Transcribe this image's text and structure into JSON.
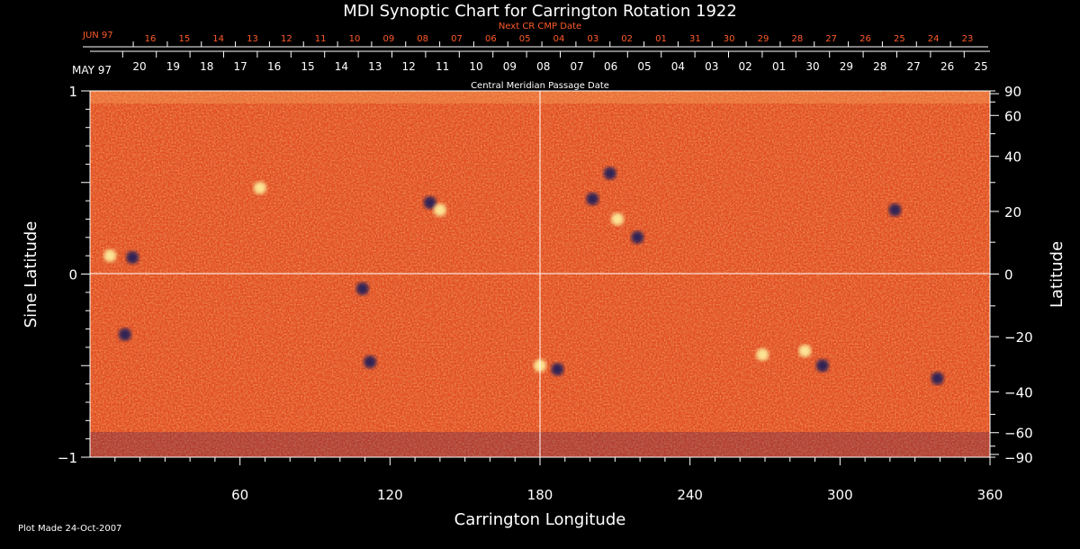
{
  "chart_data": {
    "type": "heatmap",
    "title": "MDI Synoptic Chart for Carrington Rotation 1922",
    "xlabel": "Carrington Longitude",
    "ylabel_left": "Sine Latitude",
    "ylabel_right": "Latitude",
    "xlim": [
      0,
      360
    ],
    "ylim": [
      -1,
      1
    ],
    "x_ticks": [
      60,
      120,
      180,
      240,
      300,
      360
    ],
    "y_left_ticks": [
      {
        "value": 1,
        "label": "1"
      },
      {
        "value": 0,
        "label": "0"
      },
      {
        "value": -1,
        "label": "−1"
      }
    ],
    "y_right_ticks": [
      90,
      60,
      40,
      20,
      0,
      -20,
      -40,
      -60,
      -90
    ],
    "top_axis_label": "Central Meridian Passage Date",
    "top_axis_month": "MAY 97",
    "top_axis_dates": [
      "20",
      "19",
      "18",
      "17",
      "16",
      "15",
      "14",
      "13",
      "12",
      "11",
      "10",
      "09",
      "08",
      "07",
      "06",
      "05",
      "04",
      "03",
      "02",
      "01",
      "30",
      "29",
      "28",
      "27",
      "26",
      "25"
    ],
    "secondary_axis_label": "Next CR CMP Date",
    "secondary_axis_month": "JUN 97",
    "secondary_axis_dates": [
      "16",
      "15",
      "14",
      "13",
      "12",
      "11",
      "10",
      "09",
      "08",
      "07",
      "06",
      "05",
      "04",
      "03",
      "02",
      "01",
      "31",
      "30",
      "29",
      "28",
      "27",
      "26",
      "25",
      "24",
      "23"
    ],
    "colors": {
      "background_field": "#e8481c",
      "positive_polarity": "#fff2a0",
      "negative_polarity": "#1a1a5a",
      "secondary_axis": "#ff5a2a"
    },
    "magnetic_features": [
      {
        "lon": 8,
        "sinlat": 0.1,
        "polarity": "positive"
      },
      {
        "lon": 17,
        "sinlat": 0.09,
        "polarity": "negative"
      },
      {
        "lon": 68,
        "sinlat": 0.47,
        "polarity": "positive"
      },
      {
        "lon": 136,
        "sinlat": 0.39,
        "polarity": "negative"
      },
      {
        "lon": 140,
        "sinlat": 0.35,
        "polarity": "positive"
      },
      {
        "lon": 109,
        "sinlat": -0.08,
        "polarity": "negative"
      },
      {
        "lon": 14,
        "sinlat": -0.33,
        "polarity": "negative"
      },
      {
        "lon": 187,
        "sinlat": -0.52,
        "polarity": "negative"
      },
      {
        "lon": 180,
        "sinlat": -0.5,
        "polarity": "positive"
      },
      {
        "lon": 208,
        "sinlat": 0.55,
        "polarity": "negative"
      },
      {
        "lon": 201,
        "sinlat": 0.41,
        "polarity": "negative"
      },
      {
        "lon": 219,
        "sinlat": 0.2,
        "polarity": "negative"
      },
      {
        "lon": 211,
        "sinlat": 0.3,
        "polarity": "positive"
      },
      {
        "lon": 322,
        "sinlat": 0.35,
        "polarity": "negative"
      },
      {
        "lon": 286,
        "sinlat": -0.42,
        "polarity": "positive"
      },
      {
        "lon": 293,
        "sinlat": -0.5,
        "polarity": "negative"
      },
      {
        "lon": 269,
        "sinlat": -0.44,
        "polarity": "positive"
      },
      {
        "lon": 339,
        "sinlat": -0.57,
        "polarity": "negative"
      },
      {
        "lon": 112,
        "sinlat": -0.48,
        "polarity": "negative"
      }
    ]
  },
  "footer": {
    "plot_made": "Plot Made 24-Oct-2007"
  }
}
